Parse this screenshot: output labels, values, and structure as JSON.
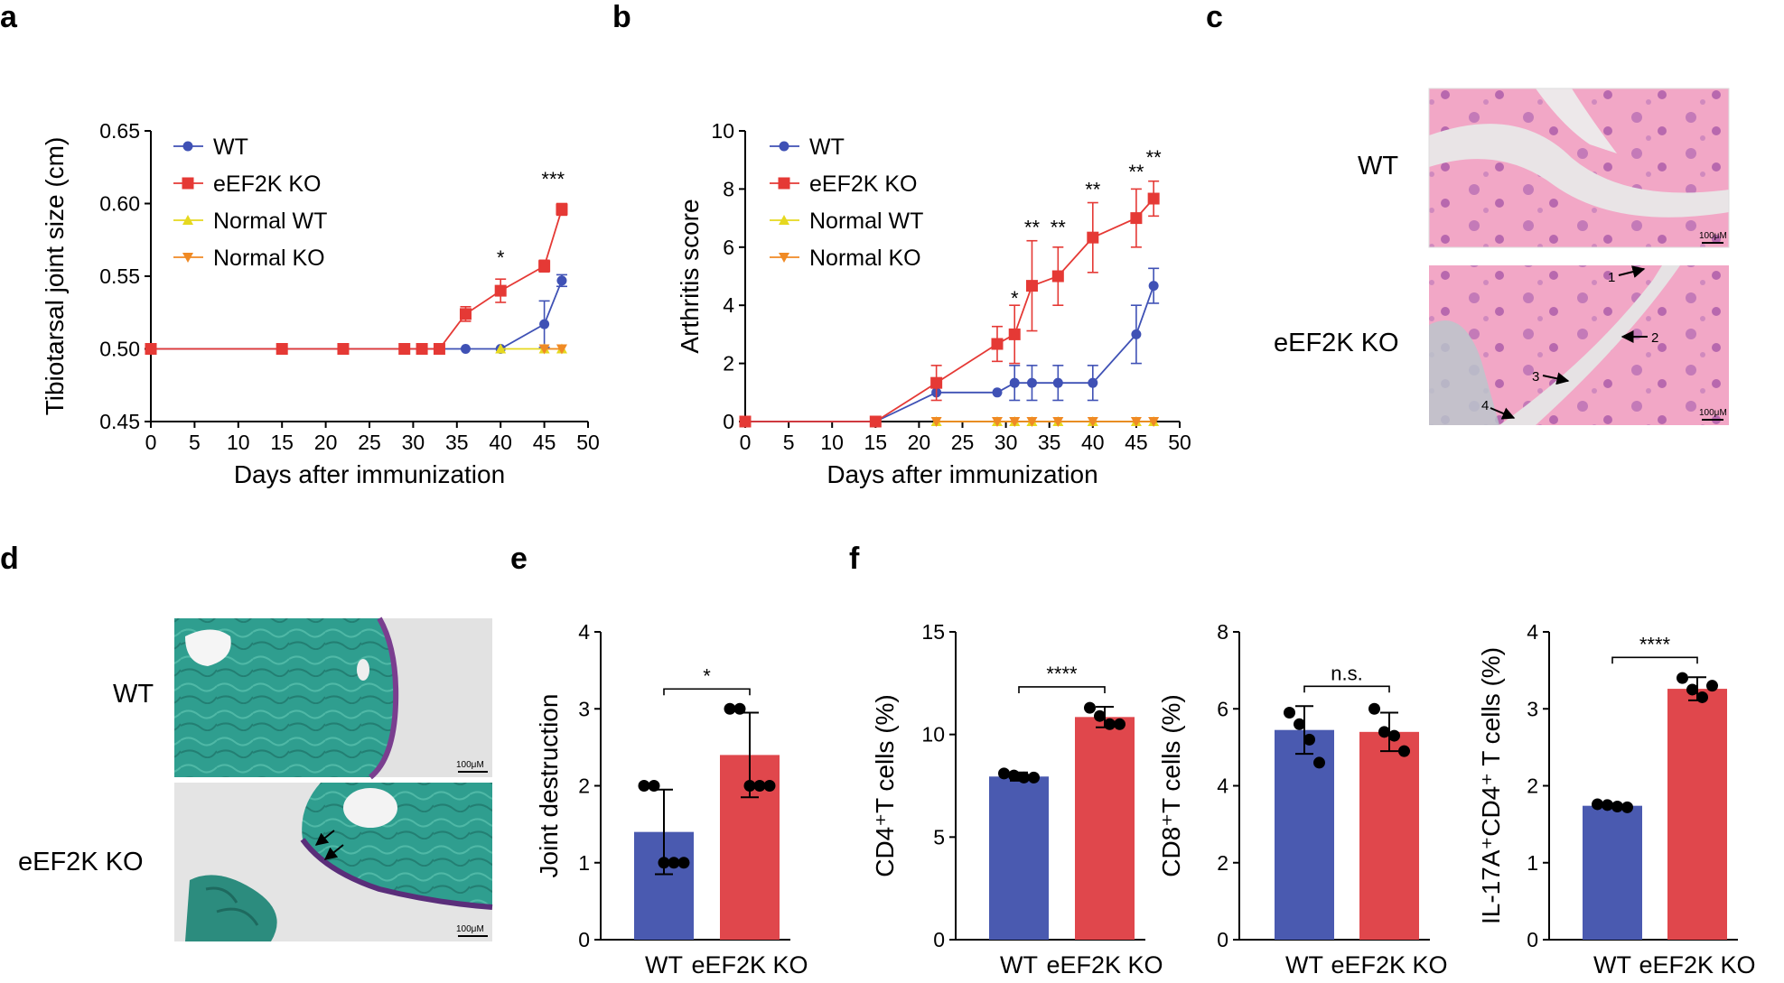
{
  "panel_labels": [
    "a",
    "b",
    "c",
    "d",
    "e",
    "f"
  ],
  "colors": {
    "wt": "#3F51B5",
    "ko": "#E53935",
    "normal_wt": "#E6D81F",
    "normal_ko": "#F08A24",
    "wt_bar": "#4A5AB0",
    "ko_bar": "#E0474C"
  },
  "images": {
    "c": {
      "labels": [
        "WT",
        "eEF2K KO"
      ],
      "scale": "100μM",
      "arrows": [
        "1",
        "2",
        "3",
        "4"
      ]
    },
    "d": {
      "labels": [
        "WT",
        "eEF2K KO"
      ],
      "scale": "100μM"
    }
  },
  "chart_data": [
    {
      "id": "a",
      "type": "line",
      "ylabel": "Tibiotarsal joint size (cm)",
      "xlabel": "Days after immunization",
      "xlim": [
        0,
        50
      ],
      "ylim": [
        0.45,
        0.65
      ],
      "xticks": [
        0,
        5,
        10,
        15,
        20,
        25,
        30,
        35,
        40,
        45,
        50
      ],
      "yticks": [
        "0.45",
        "0.50",
        "0.55",
        "0.60",
        "0.65"
      ],
      "series": [
        {
          "name": "WT",
          "color": "#3F51B5",
          "marker": "circle",
          "x": [
            0,
            15,
            22,
            29,
            31,
            33,
            36,
            40,
            45,
            47
          ],
          "y": [
            0.5,
            0.5,
            0.5,
            0.5,
            0.5,
            0.5,
            0.5,
            0.5,
            0.517,
            0.547
          ],
          "err": [
            0,
            0,
            0,
            0,
            0,
            0,
            0,
            0,
            0.016,
            0.004
          ]
        },
        {
          "name": "eEF2K KO",
          "color": "#E53935",
          "marker": "square",
          "x": [
            0,
            15,
            22,
            29,
            31,
            33,
            36,
            40,
            45,
            47
          ],
          "y": [
            0.5,
            0.5,
            0.5,
            0.5,
            0.5,
            0.5,
            0.524,
            0.54,
            0.557,
            0.596
          ],
          "err": [
            0,
            0,
            0,
            0,
            0,
            0,
            0.005,
            0.008,
            0.004,
            0.004
          ]
        },
        {
          "name": "Normal WT",
          "color": "#E6D81F",
          "marker": "triangle-up",
          "x": [
            40,
            45,
            47
          ],
          "y": [
            0.5,
            0.5,
            0.5
          ],
          "err": [
            0,
            0,
            0
          ]
        },
        {
          "name": "Normal KO",
          "color": "#F08A24",
          "marker": "triangle-down",
          "x": [
            45,
            47
          ],
          "y": [
            0.5,
            0.5
          ],
          "err": [
            0,
            0
          ]
        }
      ],
      "annotations": [
        {
          "x": 40,
          "y": 0.558,
          "text": "*"
        },
        {
          "x": 46,
          "y": 0.612,
          "text": "***"
        }
      ]
    },
    {
      "id": "b",
      "type": "line",
      "ylabel": "Arthritis score",
      "xlabel": "Days after immunization",
      "xlim": [
        0,
        50
      ],
      "ylim": [
        0,
        10
      ],
      "xticks": [
        0,
        5,
        10,
        15,
        20,
        25,
        30,
        35,
        40,
        45,
        50
      ],
      "yticks": [
        "0",
        "2",
        "4",
        "6",
        "8",
        "10"
      ],
      "series": [
        {
          "name": "WT",
          "color": "#3F51B5",
          "marker": "circle",
          "x": [
            0,
            15,
            22,
            29,
            31,
            33,
            36,
            40,
            45,
            47
          ],
          "y": [
            0,
            0,
            1,
            1,
            1.33,
            1.33,
            1.33,
            1.33,
            3,
            4.67
          ],
          "err": [
            0,
            0,
            0,
            0,
            0.6,
            0.6,
            0.6,
            0.6,
            1,
            0.6
          ]
        },
        {
          "name": "eEF2K KO",
          "color": "#E53935",
          "marker": "square",
          "x": [
            0,
            15,
            22,
            29,
            31,
            33,
            36,
            40,
            45,
            47
          ],
          "y": [
            0,
            0,
            1.33,
            2.67,
            3,
            4.67,
            5,
            6.33,
            7,
            7.67
          ],
          "err": [
            0,
            0,
            0.6,
            0.6,
            1,
            1.55,
            1,
            1.2,
            1,
            0.6
          ]
        },
        {
          "name": "Normal WT",
          "color": "#E6D81F",
          "marker": "triangle-up",
          "x": [
            22,
            29,
            31,
            33,
            36,
            40,
            45,
            47
          ],
          "y": [
            0,
            0,
            0,
            0,
            0,
            0,
            0,
            0
          ],
          "err": [
            0,
            0,
            0,
            0,
            0,
            0,
            0,
            0
          ]
        },
        {
          "name": "Normal KO",
          "color": "#F08A24",
          "marker": "triangle-down",
          "x": [
            22,
            29,
            31,
            33,
            36,
            40,
            45,
            47
          ],
          "y": [
            0,
            0,
            0,
            0,
            0,
            0,
            0,
            0
          ],
          "err": [
            0,
            0,
            0,
            0,
            0,
            0,
            0,
            0
          ]
        }
      ],
      "annotations": [
        {
          "x": 31,
          "y": 4.0,
          "text": "*"
        },
        {
          "x": 33,
          "y": 6.45,
          "text": "**"
        },
        {
          "x": 36,
          "y": 6.45,
          "text": "**"
        },
        {
          "x": 40,
          "y": 7.75,
          "text": "**"
        },
        {
          "x": 45,
          "y": 8.35,
          "text": "**"
        },
        {
          "x": 47,
          "y": 8.85,
          "text": "**"
        }
      ]
    },
    {
      "id": "e",
      "type": "bar",
      "ylabel": "Joint destruction",
      "categories": [
        "WT",
        "eEF2K KO"
      ],
      "ylim": [
        0,
        4
      ],
      "yticks": [
        "0",
        "1",
        "2",
        "3",
        "4"
      ],
      "values": [
        1.4,
        2.4
      ],
      "sd": [
        0.55,
        0.55
      ],
      "points": [
        [
          2,
          2,
          1,
          1,
          1
        ],
        [
          3,
          3,
          2,
          2,
          2
        ]
      ],
      "significance": "*"
    },
    {
      "id": "f1",
      "type": "bar",
      "ylabel": "CD4⁺T cells (%)",
      "categories": [
        "WT",
        "eEF2K KO"
      ],
      "ylim": [
        0,
        15
      ],
      "yticks": [
        "0",
        "5",
        "10",
        "15"
      ],
      "values": [
        7.95,
        10.85
      ],
      "sd": [
        0.2,
        0.5
      ],
      "points": [
        [
          8.1,
          8.0,
          7.9,
          7.9
        ],
        [
          11.3,
          10.9,
          10.5,
          10.5
        ]
      ],
      "significance": "****"
    },
    {
      "id": "f2",
      "type": "bar",
      "ylabel": "CD8⁺T cells (%)",
      "categories": [
        "WT",
        "eEF2K KO"
      ],
      "ylim": [
        0,
        8
      ],
      "yticks": [
        "0",
        "2",
        "4",
        "6",
        "8"
      ],
      "values": [
        5.45,
        5.4
      ],
      "sd": [
        0.62,
        0.5
      ],
      "points": [
        [
          5.9,
          5.6,
          5.2,
          4.6
        ],
        [
          6.0,
          5.4,
          5.3,
          4.9
        ]
      ],
      "significance": "n.s."
    },
    {
      "id": "f3",
      "type": "bar",
      "ylabel": "IL-17A⁺CD4⁺ T cells (%)",
      "categories": [
        "WT",
        "eEF2K KO"
      ],
      "ylim": [
        0,
        4
      ],
      "yticks": [
        "0",
        "1",
        "2",
        "3",
        "4"
      ],
      "values": [
        1.74,
        3.26
      ],
      "sd": [
        0.03,
        0.15
      ],
      "points": [
        [
          1.76,
          1.75,
          1.73,
          1.72
        ],
        [
          3.4,
          3.25,
          3.15,
          3.3
        ]
      ],
      "significance": "****"
    }
  ]
}
